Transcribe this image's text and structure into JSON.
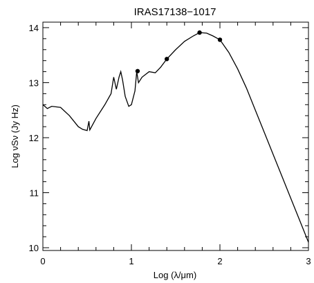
{
  "chart_data": {
    "type": "line",
    "title": "IRAS17138−1017",
    "xlabel": "Log (λ/μm)",
    "ylabel": "Log νSν (Jy Hz)",
    "xlim": [
      0,
      3
    ],
    "ylim": [
      9.95,
      14.1
    ],
    "x_ticks": [
      0,
      1,
      2,
      3
    ],
    "x_tick_labels": [
      "0",
      "1",
      "2",
      "3"
    ],
    "y_ticks": [
      10,
      11,
      12,
      13,
      14
    ],
    "y_tick_labels": [
      "10",
      "11",
      "12",
      "13",
      "14"
    ],
    "grid": false,
    "series": [
      {
        "kind": "line",
        "color": "#000000",
        "points": [
          [
            0.0,
            12.6
          ],
          [
            0.05,
            12.53
          ],
          [
            0.1,
            12.57
          ],
          [
            0.2,
            12.55
          ],
          [
            0.3,
            12.4
          ],
          [
            0.4,
            12.2
          ],
          [
            0.45,
            12.15
          ],
          [
            0.5,
            12.13
          ],
          [
            0.52,
            12.3
          ],
          [
            0.53,
            12.14
          ],
          [
            0.6,
            12.35
          ],
          [
            0.7,
            12.6
          ],
          [
            0.77,
            12.8
          ],
          [
            0.8,
            13.1
          ],
          [
            0.83,
            12.88
          ],
          [
            0.86,
            13.1
          ],
          [
            0.88,
            13.2
          ],
          [
            0.9,
            13.05
          ],
          [
            0.93,
            12.75
          ],
          [
            0.97,
            12.57
          ],
          [
            1.0,
            12.6
          ],
          [
            1.04,
            12.85
          ],
          [
            1.06,
            13.2
          ],
          [
            1.08,
            13.0
          ],
          [
            1.12,
            13.1
          ],
          [
            1.2,
            13.2
          ],
          [
            1.27,
            13.18
          ],
          [
            1.33,
            13.28
          ],
          [
            1.4,
            13.43
          ],
          [
            1.5,
            13.6
          ],
          [
            1.6,
            13.75
          ],
          [
            1.7,
            13.85
          ],
          [
            1.77,
            13.91
          ],
          [
            1.85,
            13.9
          ],
          [
            1.92,
            13.85
          ],
          [
            2.0,
            13.78
          ],
          [
            2.1,
            13.55
          ],
          [
            2.2,
            13.25
          ],
          [
            2.3,
            12.9
          ],
          [
            2.4,
            12.5
          ],
          [
            2.5,
            12.1
          ],
          [
            2.6,
            11.7
          ],
          [
            2.7,
            11.3
          ],
          [
            2.8,
            10.9
          ],
          [
            2.9,
            10.5
          ],
          [
            3.0,
            10.1
          ]
        ]
      },
      {
        "kind": "points",
        "color": "#000000",
        "points": [
          [
            1.07,
            13.21
          ],
          [
            1.4,
            13.43
          ],
          [
            1.77,
            13.91
          ],
          [
            2.0,
            13.78
          ]
        ]
      }
    ]
  }
}
